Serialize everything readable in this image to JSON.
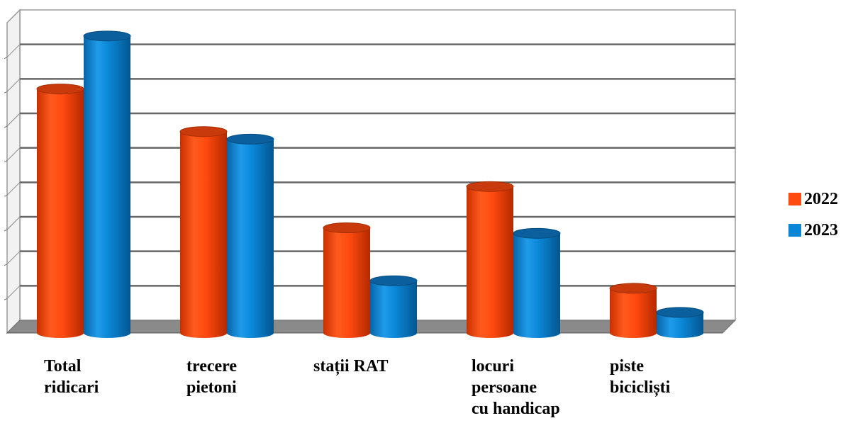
{
  "chart_data": {
    "type": "bar",
    "categories": [
      [
        "Total",
        "ridicari"
      ],
      [
        "trecere",
        "pietoni"
      ],
      [
        "stații RAT"
      ],
      [
        "locuri",
        "persoane",
        "cu handicap"
      ],
      [
        "piste",
        "bicicliști"
      ]
    ],
    "series": [
      {
        "name": "2022",
        "color": "#ff4a10",
        "values": [
          355,
          293,
          153,
          213,
          65
        ]
      },
      {
        "name": "2023",
        "color": "#0a86d6",
        "values": [
          432,
          282,
          76,
          145,
          30
        ]
      }
    ],
    "ylim": [
      0,
      470
    ],
    "grid": true,
    "legend": "right",
    "three_d": true
  }
}
